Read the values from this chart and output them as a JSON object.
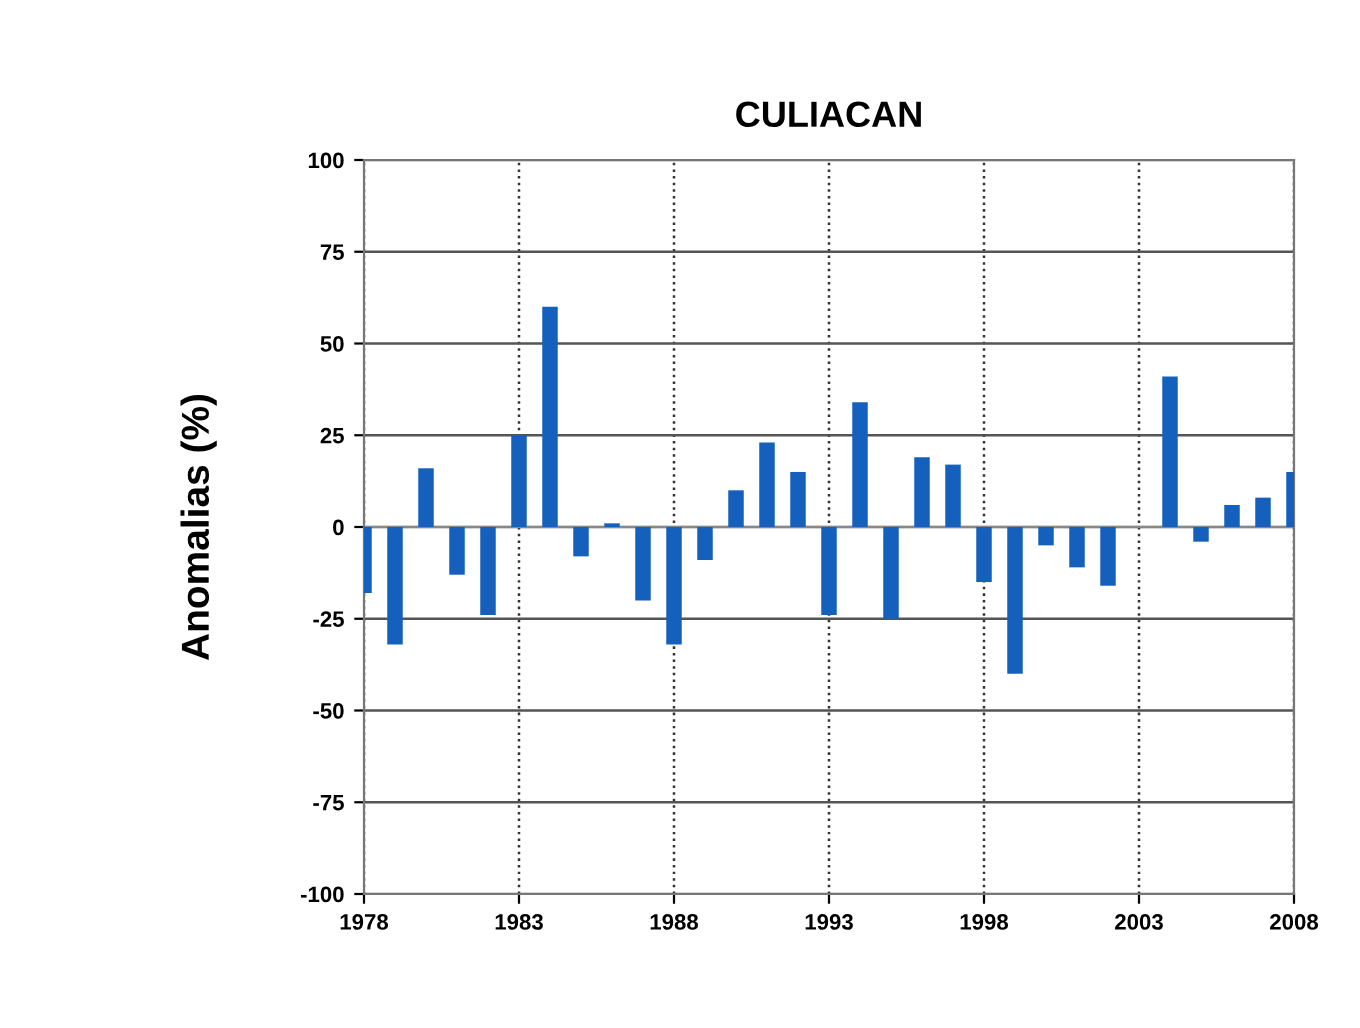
{
  "chart_data": {
    "type": "bar",
    "title": "CULIACAN",
    "ylabel": "Anomalias (%)",
    "x": [
      1978,
      1979,
      1980,
      1981,
      1982,
      1983,
      1984,
      1985,
      1986,
      1987,
      1988,
      1989,
      1990,
      1991,
      1992,
      1993,
      1994,
      1995,
      1996,
      1997,
      1998,
      1999,
      2000,
      2001,
      2002,
      2003,
      2004,
      2005,
      2006,
      2007,
      2008
    ],
    "values": [
      -18,
      -32,
      16,
      -13,
      -24,
      25,
      60,
      -8,
      1,
      -20,
      -32,
      -9,
      10,
      23,
      15,
      -24,
      34,
      -25,
      19,
      17,
      -15,
      -40,
      -5,
      -11,
      -16,
      0,
      41,
      -4,
      6,
      8,
      15
    ],
    "color": "#1560bd",
    "xlim": [
      1978,
      2008
    ],
    "xticks": [
      1978,
      1983,
      1988,
      1993,
      1998,
      2003,
      2008
    ],
    "ylim": [
      -100,
      100
    ],
    "yticks": [
      -100,
      -75,
      -50,
      -25,
      0,
      25,
      50,
      75,
      100
    ],
    "grid": true
  }
}
